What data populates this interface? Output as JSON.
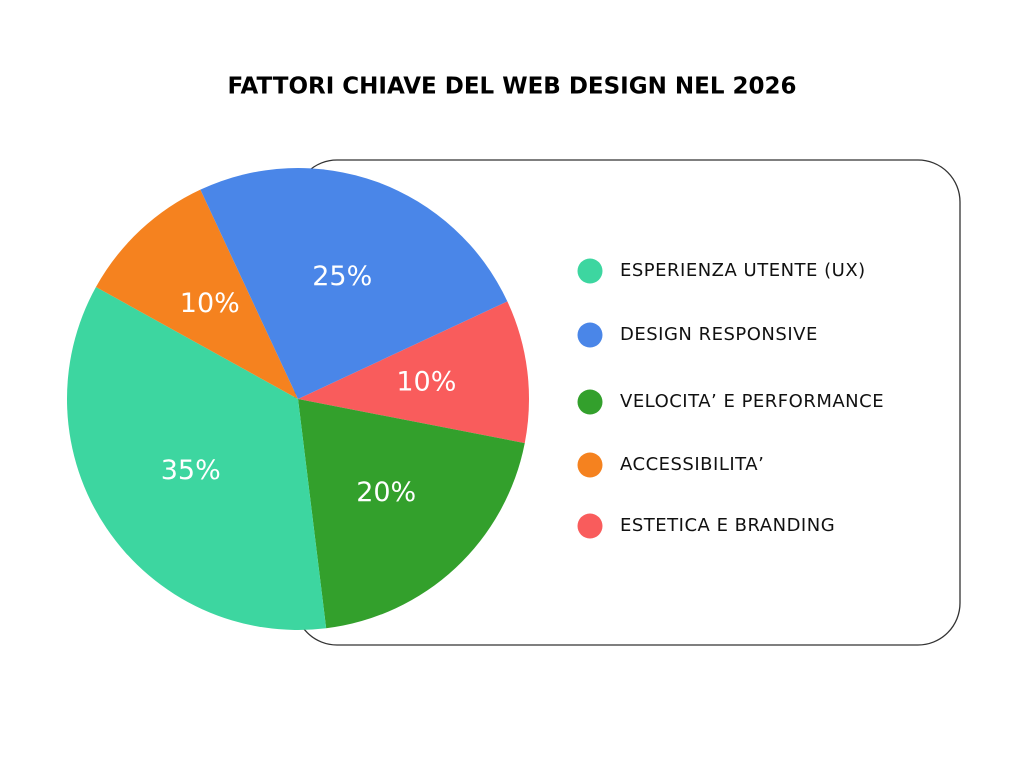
{
  "chart_data": {
    "type": "pie",
    "title": "FATTORI CHIAVE DEL WEB DESIGN NEL 2026",
    "categories": [
      "ESPERIENZA UTENTE (UX)",
      "DESIGN RESPONSIVE",
      "VELOCITA’ E PERFORMANCE",
      "ACCESSIBILITA’",
      "ESTETICA E BRANDING"
    ],
    "values": [
      35,
      25,
      20,
      10,
      10
    ],
    "value_labels": [
      "35%",
      "25%",
      "20%",
      "10%",
      "10%"
    ],
    "colors": [
      "#3dd6a0",
      "#4a86e8",
      "#33a02c",
      "#f5821f",
      "#f95c5c"
    ]
  }
}
